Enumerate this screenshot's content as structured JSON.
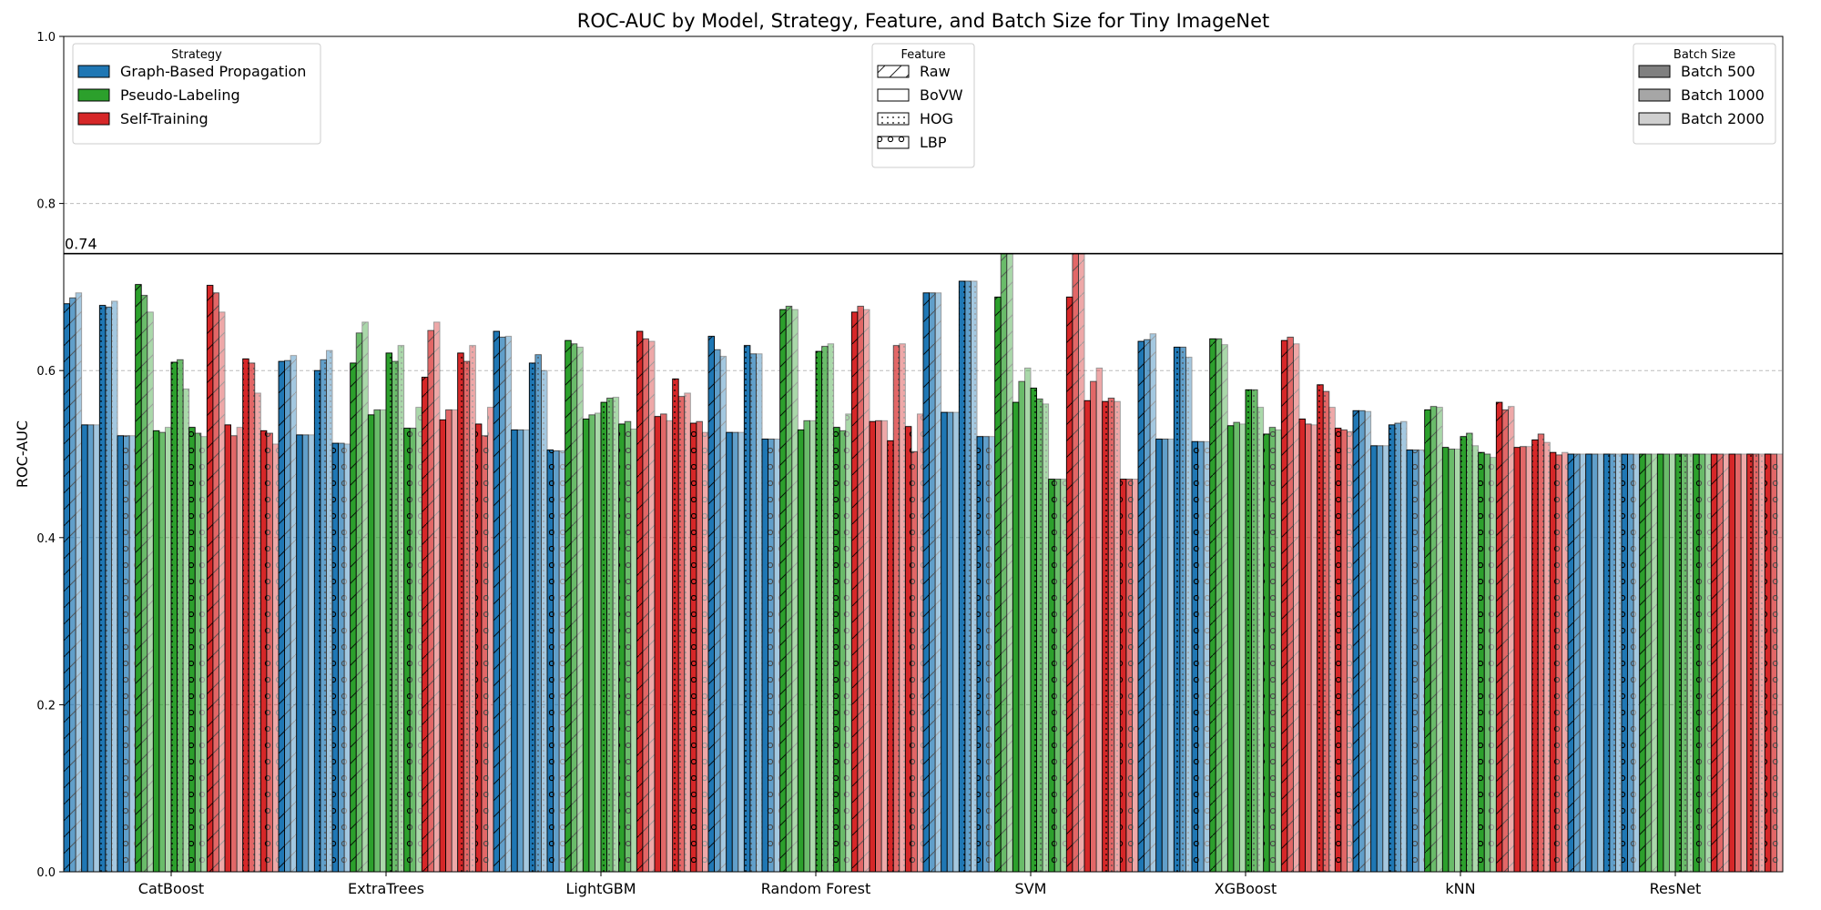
{
  "chart_data": {
    "type": "bar",
    "title": "ROC-AUC by Model, Strategy, Feature, and Batch Size for Tiny ImageNet",
    "xlabel": "",
    "ylabel": "ROC-AUC",
    "ylim": [
      0,
      1.0
    ],
    "yticks": [
      "0.0",
      "0.2",
      "0.4",
      "0.6",
      "0.8",
      "1.0"
    ],
    "grid": "horizontal dashed",
    "reference_line": {
      "value": 0.74,
      "label": "0.74"
    },
    "categories": [
      "CatBoost",
      "ExtraTrees",
      "LightGBM",
      "Random Forest",
      "SVM",
      "XGBoost",
      "kNN",
      "ResNet"
    ],
    "strategies": [
      "Graph-Based Propagation",
      "Pseudo-Labeling",
      "Self-Training"
    ],
    "features": [
      "Raw",
      "BoVW",
      "HOG",
      "LBP"
    ],
    "batch_sizes": [
      "Batch 500",
      "Batch 1000",
      "Batch 2000"
    ],
    "value_order": "values[model][strategy][feature][batch]",
    "values": [
      [
        [
          [
            0.68,
            0.687,
            0.693
          ],
          [
            0.535,
            0.535,
            0.535
          ],
          [
            0.678,
            0.676,
            0.683
          ],
          [
            0.522,
            0.522,
            0.522
          ]
        ],
        [
          [
            0.703,
            0.69,
            0.67
          ],
          [
            0.528,
            0.526,
            0.532
          ],
          [
            0.61,
            0.613,
            0.578
          ],
          [
            0.532,
            0.525,
            0.521
          ]
        ],
        [
          [
            0.702,
            0.693,
            0.67
          ],
          [
            0.535,
            0.522,
            0.532
          ],
          [
            0.614,
            0.609,
            0.573
          ],
          [
            0.528,
            0.525,
            0.512
          ]
        ]
      ],
      [
        [
          [
            0.611,
            0.612,
            0.618
          ],
          [
            0.523,
            0.523,
            0.523
          ],
          [
            0.6,
            0.613,
            0.624
          ],
          [
            0.513,
            0.513,
            0.512
          ]
        ],
        [
          [
            0.609,
            0.645,
            0.658
          ],
          [
            0.547,
            0.553,
            0.553
          ],
          [
            0.621,
            0.611,
            0.63
          ],
          [
            0.531,
            0.531,
            0.556
          ]
        ],
        [
          [
            0.592,
            0.648,
            0.658
          ],
          [
            0.541,
            0.553,
            0.553
          ],
          [
            0.621,
            0.611,
            0.63
          ],
          [
            0.536,
            0.522,
            0.556
          ]
        ]
      ],
      [
        [
          [
            0.647,
            0.64,
            0.641
          ],
          [
            0.529,
            0.529,
            0.529
          ],
          [
            0.609,
            0.619,
            0.6
          ],
          [
            0.505,
            0.504,
            0.504
          ]
        ],
        [
          [
            0.636,
            0.632,
            0.628
          ],
          [
            0.542,
            0.547,
            0.549
          ],
          [
            0.562,
            0.567,
            0.568
          ],
          [
            0.536,
            0.539,
            0.53
          ]
        ],
        [
          [
            0.647,
            0.638,
            0.635
          ],
          [
            0.545,
            0.548,
            0.54
          ],
          [
            0.59,
            0.569,
            0.573
          ],
          [
            0.537,
            0.539,
            0.526
          ]
        ]
      ],
      [
        [
          [
            0.641,
            0.625,
            0.617
          ],
          [
            0.526,
            0.526,
            0.526
          ],
          [
            0.63,
            0.62,
            0.62
          ],
          [
            0.518,
            0.518,
            0.518
          ]
        ],
        [
          [
            0.673,
            0.677,
            0.673
          ],
          [
            0.529,
            0.54,
            0.54
          ],
          [
            0.623,
            0.629,
            0.632
          ],
          [
            0.532,
            0.528,
            0.548
          ]
        ],
        [
          [
            0.67,
            0.677,
            0.673
          ],
          [
            0.539,
            0.54,
            0.54
          ],
          [
            0.516,
            0.63,
            0.632
          ],
          [
            0.533,
            0.503,
            0.548
          ]
        ]
      ],
      [
        [
          [
            0.693,
            0.693,
            0.693
          ],
          [
            0.55,
            0.55,
            0.55
          ],
          [
            0.707,
            0.707,
            0.707
          ],
          [
            0.521,
            0.521,
            0.521
          ]
        ],
        [
          [
            0.688,
            0.74,
            0.74
          ],
          [
            0.562,
            0.587,
            0.603
          ],
          [
            0.579,
            0.566,
            0.56
          ],
          [
            0.47,
            0.47,
            0.47
          ]
        ],
        [
          [
            0.688,
            0.74,
            0.74
          ],
          [
            0.564,
            0.587,
            0.603
          ],
          [
            0.563,
            0.567,
            0.563
          ],
          [
            0.47,
            0.47,
            0.47
          ]
        ]
      ],
      [
        [
          [
            0.635,
            0.637,
            0.644
          ],
          [
            0.518,
            0.518,
            0.518
          ],
          [
            0.628,
            0.628,
            0.616
          ],
          [
            0.515,
            0.515,
            0.515
          ]
        ],
        [
          [
            0.638,
            0.638,
            0.631
          ],
          [
            0.534,
            0.538,
            0.536
          ],
          [
            0.577,
            0.577,
            0.556
          ],
          [
            0.524,
            0.532,
            0.529
          ]
        ],
        [
          [
            0.636,
            0.64,
            0.632
          ],
          [
            0.542,
            0.536,
            0.535
          ],
          [
            0.583,
            0.575,
            0.556
          ],
          [
            0.531,
            0.529,
            0.527
          ]
        ]
      ],
      [
        [
          [
            0.552,
            0.552,
            0.551
          ],
          [
            0.51,
            0.51,
            0.51
          ],
          [
            0.535,
            0.537,
            0.539
          ],
          [
            0.505,
            0.505,
            0.505
          ]
        ],
        [
          [
            0.553,
            0.557,
            0.556
          ],
          [
            0.508,
            0.506,
            0.506
          ],
          [
            0.521,
            0.525,
            0.51
          ],
          [
            0.502,
            0.5,
            0.496
          ]
        ],
        [
          [
            0.562,
            0.553,
            0.557
          ],
          [
            0.508,
            0.509,
            0.509
          ],
          [
            0.517,
            0.524,
            0.514
          ],
          [
            0.502,
            0.499,
            0.502
          ]
        ]
      ],
      [
        [
          [
            0.5,
            0.5,
            0.5
          ],
          [
            0.5,
            0.5,
            0.5
          ],
          [
            0.5,
            0.5,
            0.5
          ],
          [
            0.5,
            0.5,
            0.5
          ]
        ],
        [
          [
            0.5,
            0.5,
            0.5
          ],
          [
            0.5,
            0.5,
            0.5
          ],
          [
            0.5,
            0.5,
            0.5
          ],
          [
            0.5,
            0.5,
            0.5
          ]
        ],
        [
          [
            0.5,
            0.5,
            0.5
          ],
          [
            0.5,
            0.5,
            0.5
          ],
          [
            0.5,
            0.5,
            0.5
          ],
          [
            0.5,
            0.5,
            0.5
          ]
        ]
      ]
    ],
    "legends": [
      {
        "title": "Strategy",
        "placement": "top-left",
        "entries": [
          "Graph-Based Propagation",
          "Pseudo-Labeling",
          "Self-Training"
        ]
      },
      {
        "title": "Feature",
        "placement": "top-center",
        "entries": [
          "Raw",
          "BoVW",
          "HOG",
          "LBP"
        ]
      },
      {
        "title": "Batch Size",
        "placement": "top-right",
        "entries": [
          "Batch 500",
          "Batch 1000",
          "Batch 2000"
        ]
      }
    ],
    "colors": {
      "strategy": [
        "#1f77b4",
        "#2ca02c",
        "#d62728"
      ],
      "batch_alpha": [
        1.0,
        0.7,
        0.4
      ],
      "batch_legend_fill": [
        "#808080",
        "#a6a6a6",
        "#cfcfcf"
      ],
      "feature_hatch": [
        "diagonal",
        "none",
        "dots",
        "circles"
      ]
    }
  }
}
